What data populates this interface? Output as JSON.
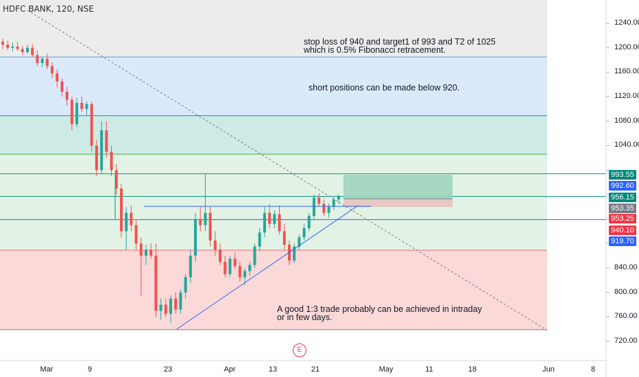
{
  "header": {
    "title": "HDFC BANK, 120, NSE"
  },
  "annotations": {
    "note1": "stop loss of 940 and target1 of 993 and T2 of 1025\nwhich is 0.5% Fibonacci retracement.",
    "note2": "short positions can be made below 920.",
    "note3": "A good 1:3 trade probably can be achieved in intraday\nor in few days."
  },
  "earnings_badge": "E",
  "chart_data": {
    "type": "candlestick",
    "symbol": "HDFC BANK",
    "interval": "120",
    "exchange": "NSE",
    "ylim": [
      705,
      1262
    ],
    "yticks": [
      720,
      760,
      800,
      840,
      880,
      920,
      960,
      1000,
      1040,
      1080,
      1120,
      1160,
      1200,
      1240
    ],
    "ytick_labels": [
      "720.00",
      "760.00",
      "800.00",
      "840.00",
      "",
      "",
      "",
      "",
      "1040.00",
      "1080.00",
      "1120.00",
      "1160.00",
      "1200.00",
      "1240.00"
    ],
    "xticks": [
      "Mar",
      "9",
      "23",
      "Apr",
      "13",
      "21",
      "May",
      "11",
      "18",
      "Jun",
      "8"
    ],
    "price_labels": [
      {
        "value": 993.55,
        "text": "993.55",
        "color": "#00897b"
      },
      {
        "value": 992.6,
        "text": "992.60",
        "color": "#2962ff"
      },
      {
        "value": 956.15,
        "text": "956.15",
        "color": "#00897b"
      },
      {
        "value": 953.35,
        "text": "953.35",
        "color": "#787b86"
      },
      {
        "value": 953.25,
        "text": "953.25",
        "color": "#f23645"
      },
      {
        "value": 940.1,
        "text": "940.10",
        "color": "#f23645"
      },
      {
        "value": 919.7,
        "text": "919.70",
        "color": "#2962ff"
      }
    ],
    "fib_levels": [
      1185,
      1089,
      1026,
      994,
      957,
      919,
      869,
      739
    ],
    "fib_zones": [
      {
        "from": 1185,
        "to": 1089,
        "color": "#dbeafb"
      },
      {
        "from": 1089,
        "to": 1026,
        "color": "#cdeae6"
      },
      {
        "from": 1026,
        "to": 869,
        "color": "#e2f2e4"
      },
      {
        "from": 869,
        "to": 739,
        "color": "#fbd9d9"
      }
    ],
    "candles": [
      {
        "o": 1210,
        "h": 1215,
        "l": 1198,
        "c": 1205
      },
      {
        "o": 1205,
        "h": 1212,
        "l": 1196,
        "c": 1200
      },
      {
        "o": 1200,
        "h": 1208,
        "l": 1194,
        "c": 1202
      },
      {
        "o": 1202,
        "h": 1210,
        "l": 1195,
        "c": 1198
      },
      {
        "o": 1198,
        "h": 1203,
        "l": 1188,
        "c": 1193
      },
      {
        "o": 1193,
        "h": 1205,
        "l": 1190,
        "c": 1200
      },
      {
        "o": 1200,
        "h": 1206,
        "l": 1185,
        "c": 1188
      },
      {
        "o": 1188,
        "h": 1196,
        "l": 1170,
        "c": 1175
      },
      {
        "o": 1175,
        "h": 1186,
        "l": 1168,
        "c": 1182
      },
      {
        "o": 1182,
        "h": 1190,
        "l": 1165,
        "c": 1170
      },
      {
        "o": 1170,
        "h": 1176,
        "l": 1150,
        "c": 1158
      },
      {
        "o": 1158,
        "h": 1165,
        "l": 1135,
        "c": 1145
      },
      {
        "o": 1145,
        "h": 1150,
        "l": 1120,
        "c": 1128
      },
      {
        "o": 1128,
        "h": 1136,
        "l": 1105,
        "c": 1115
      },
      {
        "o": 1115,
        "h": 1120,
        "l": 1065,
        "c": 1075
      },
      {
        "o": 1075,
        "h": 1118,
        "l": 1070,
        "c": 1110
      },
      {
        "o": 1110,
        "h": 1120,
        "l": 1095,
        "c": 1100
      },
      {
        "o": 1100,
        "h": 1112,
        "l": 1090,
        "c": 1108
      },
      {
        "o": 1108,
        "h": 1112,
        "l": 1030,
        "c": 1040
      },
      {
        "o": 1040,
        "h": 1050,
        "l": 990,
        "c": 1000
      },
      {
        "o": 1000,
        "h": 1080,
        "l": 995,
        "c": 1065
      },
      {
        "o": 1065,
        "h": 1080,
        "l": 1020,
        "c": 1030
      },
      {
        "o": 1030,
        "h": 1040,
        "l": 990,
        "c": 1000
      },
      {
        "o": 1000,
        "h": 1010,
        "l": 960,
        "c": 970
      },
      {
        "o": 970,
        "h": 978,
        "l": 890,
        "c": 900
      },
      {
        "o": 900,
        "h": 940,
        "l": 870,
        "c": 930
      },
      {
        "o": 930,
        "h": 942,
        "l": 900,
        "c": 910
      },
      {
        "o": 910,
        "h": 918,
        "l": 870,
        "c": 880
      },
      {
        "o": 880,
        "h": 890,
        "l": 795,
        "c": 860
      },
      {
        "o": 860,
        "h": 878,
        "l": 845,
        "c": 870
      },
      {
        "o": 870,
        "h": 880,
        "l": 855,
        "c": 860
      },
      {
        "o": 860,
        "h": 880,
        "l": 760,
        "c": 770
      },
      {
        "o": 770,
        "h": 790,
        "l": 755,
        "c": 780
      },
      {
        "o": 780,
        "h": 790,
        "l": 760,
        "c": 765
      },
      {
        "o": 765,
        "h": 795,
        "l": 750,
        "c": 790
      },
      {
        "o": 790,
        "h": 800,
        "l": 765,
        "c": 772
      },
      {
        "o": 772,
        "h": 805,
        "l": 765,
        "c": 800
      },
      {
        "o": 800,
        "h": 830,
        "l": 790,
        "c": 825
      },
      {
        "o": 825,
        "h": 870,
        "l": 815,
        "c": 860
      },
      {
        "o": 860,
        "h": 930,
        "l": 850,
        "c": 920
      },
      {
        "o": 920,
        "h": 940,
        "l": 900,
        "c": 910
      },
      {
        "o": 910,
        "h": 995,
        "l": 900,
        "c": 930
      },
      {
        "o": 930,
        "h": 940,
        "l": 875,
        "c": 885
      },
      {
        "o": 885,
        "h": 900,
        "l": 860,
        "c": 870
      },
      {
        "o": 870,
        "h": 880,
        "l": 845,
        "c": 850
      },
      {
        "o": 850,
        "h": 860,
        "l": 825,
        "c": 830
      },
      {
        "o": 830,
        "h": 860,
        "l": 825,
        "c": 855
      },
      {
        "o": 855,
        "h": 865,
        "l": 838,
        "c": 843
      },
      {
        "o": 843,
        "h": 850,
        "l": 818,
        "c": 825
      },
      {
        "o": 825,
        "h": 840,
        "l": 812,
        "c": 835
      },
      {
        "o": 835,
        "h": 850,
        "l": 828,
        "c": 845
      },
      {
        "o": 845,
        "h": 880,
        "l": 840,
        "c": 875
      },
      {
        "o": 875,
        "h": 905,
        "l": 868,
        "c": 898
      },
      {
        "o": 898,
        "h": 940,
        "l": 890,
        "c": 930
      },
      {
        "o": 930,
        "h": 945,
        "l": 905,
        "c": 912
      },
      {
        "o": 912,
        "h": 935,
        "l": 905,
        "c": 928
      },
      {
        "o": 928,
        "h": 942,
        "l": 895,
        "c": 900
      },
      {
        "o": 900,
        "h": 912,
        "l": 870,
        "c": 878
      },
      {
        "o": 878,
        "h": 885,
        "l": 845,
        "c": 852
      },
      {
        "o": 852,
        "h": 880,
        "l": 848,
        "c": 875
      },
      {
        "o": 875,
        "h": 895,
        "l": 870,
        "c": 890
      },
      {
        "o": 890,
        "h": 912,
        "l": 885,
        "c": 905
      },
      {
        "o": 905,
        "h": 930,
        "l": 900,
        "c": 925
      },
      {
        "o": 925,
        "h": 960,
        "l": 920,
        "c": 955
      },
      {
        "o": 955,
        "h": 962,
        "l": 940,
        "c": 945
      },
      {
        "o": 945,
        "h": 952,
        "l": 925,
        "c": 930
      },
      {
        "o": 930,
        "h": 945,
        "l": 922,
        "c": 940
      },
      {
        "o": 940,
        "h": 955,
        "l": 935,
        "c": 952
      },
      {
        "o": 952,
        "h": 960,
        "l": 945,
        "c": 957
      }
    ]
  }
}
